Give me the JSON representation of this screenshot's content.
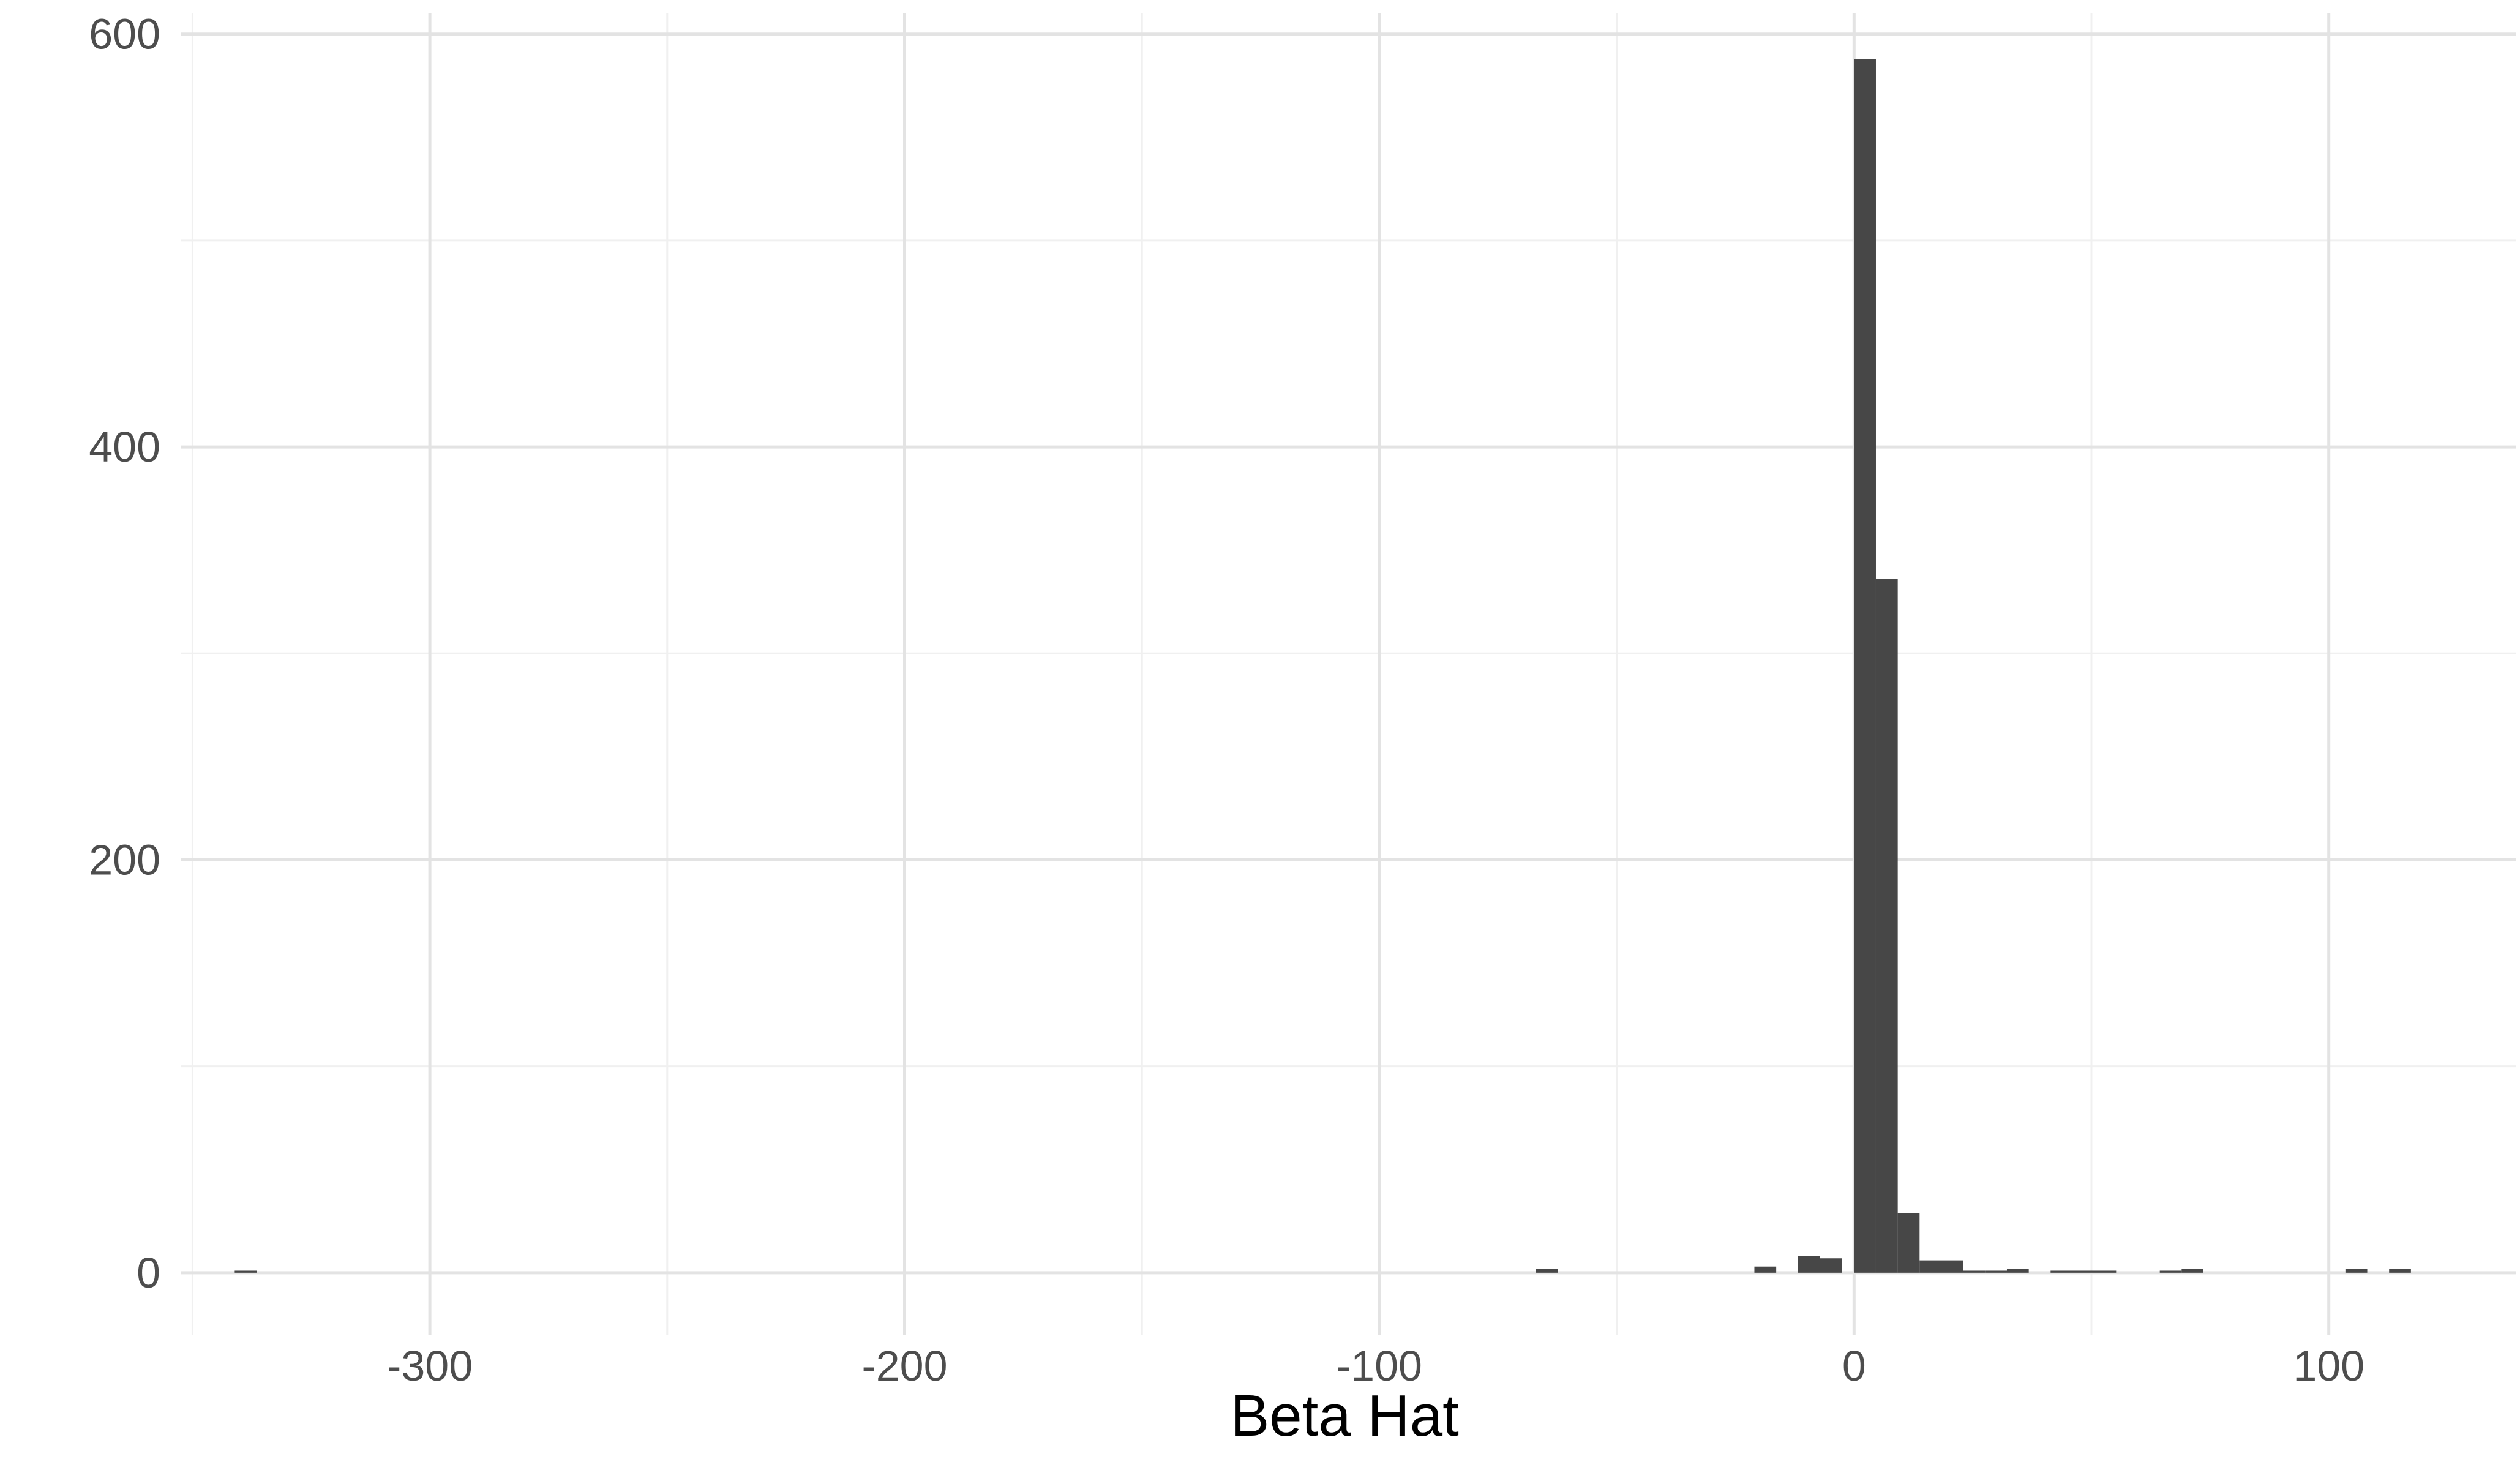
{
  "chart_data": {
    "type": "bar",
    "title": "",
    "xlabel": "Beta Hat",
    "ylabel": "",
    "xlim": [
      -352.5,
      139.5
    ],
    "ylim": [
      -30,
      610
    ],
    "x_ticks": [
      -300,
      -200,
      -100,
      0,
      100
    ],
    "x_tick_labels": [
      "-300",
      "-200",
      "-100",
      "0",
      "100"
    ],
    "y_ticks": [
      0,
      200,
      400,
      600
    ],
    "y_tick_labels": [
      "0",
      "200",
      "400",
      "600"
    ],
    "y_minor_ticks": [
      100,
      300,
      500
    ],
    "x_minor_ticks": [
      -350,
      -250,
      -150,
      -50,
      50
    ],
    "grid": true,
    "legend": "none",
    "bin_width": 4.6,
    "bins": [
      {
        "x": -338.8,
        "count": 1
      },
      {
        "x": -64.7,
        "count": 2
      },
      {
        "x": -18.7,
        "count": 3
      },
      {
        "x": -9.5,
        "count": 8
      },
      {
        "x": -4.9,
        "count": 7
      },
      {
        "x": 2.3,
        "count": 588
      },
      {
        "x": 6.9,
        "count": 336
      },
      {
        "x": 11.5,
        "count": 29
      },
      {
        "x": 16.1,
        "count": 6
      },
      {
        "x": 20.7,
        "count": 6
      },
      {
        "x": 25.3,
        "count": 1
      },
      {
        "x": 29.9,
        "count": 1
      },
      {
        "x": 34.5,
        "count": 2
      },
      {
        "x": 43.7,
        "count": 1
      },
      {
        "x": 48.3,
        "count": 1
      },
      {
        "x": 52.9,
        "count": 1
      },
      {
        "x": 66.7,
        "count": 1
      },
      {
        "x": 71.3,
        "count": 2
      },
      {
        "x": 105.8,
        "count": 2
      },
      {
        "x": 115.0,
        "count": 2
      }
    ],
    "colors": {
      "bar": "#474747",
      "grid_major": "#e3e3e3",
      "grid_minor": "#f0f0f0",
      "tick_text": "#4d4d4d",
      "axis_title": "#000000",
      "background": "#ffffff"
    }
  }
}
